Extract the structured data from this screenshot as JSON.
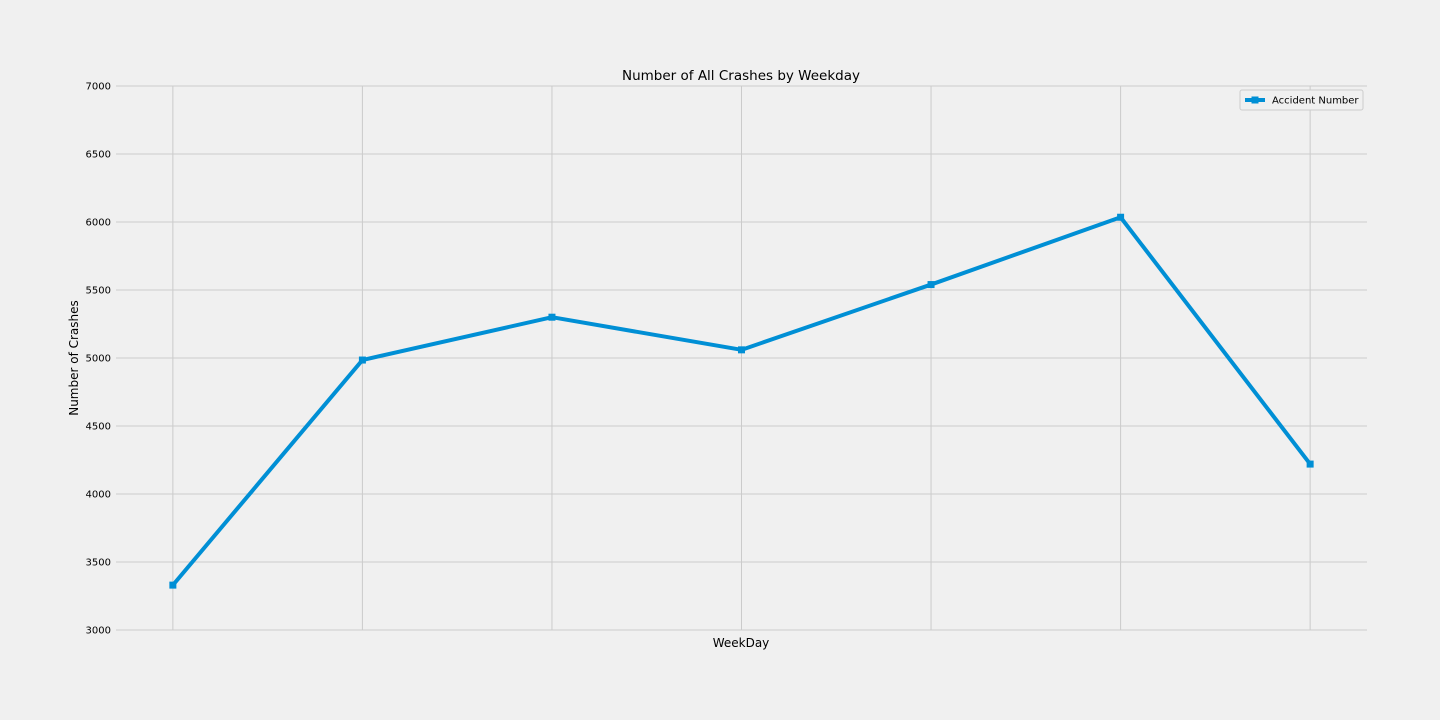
{
  "chart_data": {
    "type": "line",
    "title": "Number of All Crashes by Weekday",
    "xlabel": "WeekDay",
    "ylabel": "Number of Crashes",
    "x": [
      0,
      1,
      2,
      3,
      4,
      5,
      6
    ],
    "ylim": [
      3000,
      7000
    ],
    "yticks": [
      3000,
      3500,
      4000,
      4500,
      5000,
      5500,
      6000,
      6500,
      7000
    ],
    "grid": true,
    "legend_position": "top-right",
    "series": [
      {
        "name": "Accident Number",
        "color": "#008fd5",
        "marker": "square",
        "values": [
          3330,
          4985,
          5300,
          5060,
          5540,
          6035,
          4220
        ]
      }
    ]
  }
}
